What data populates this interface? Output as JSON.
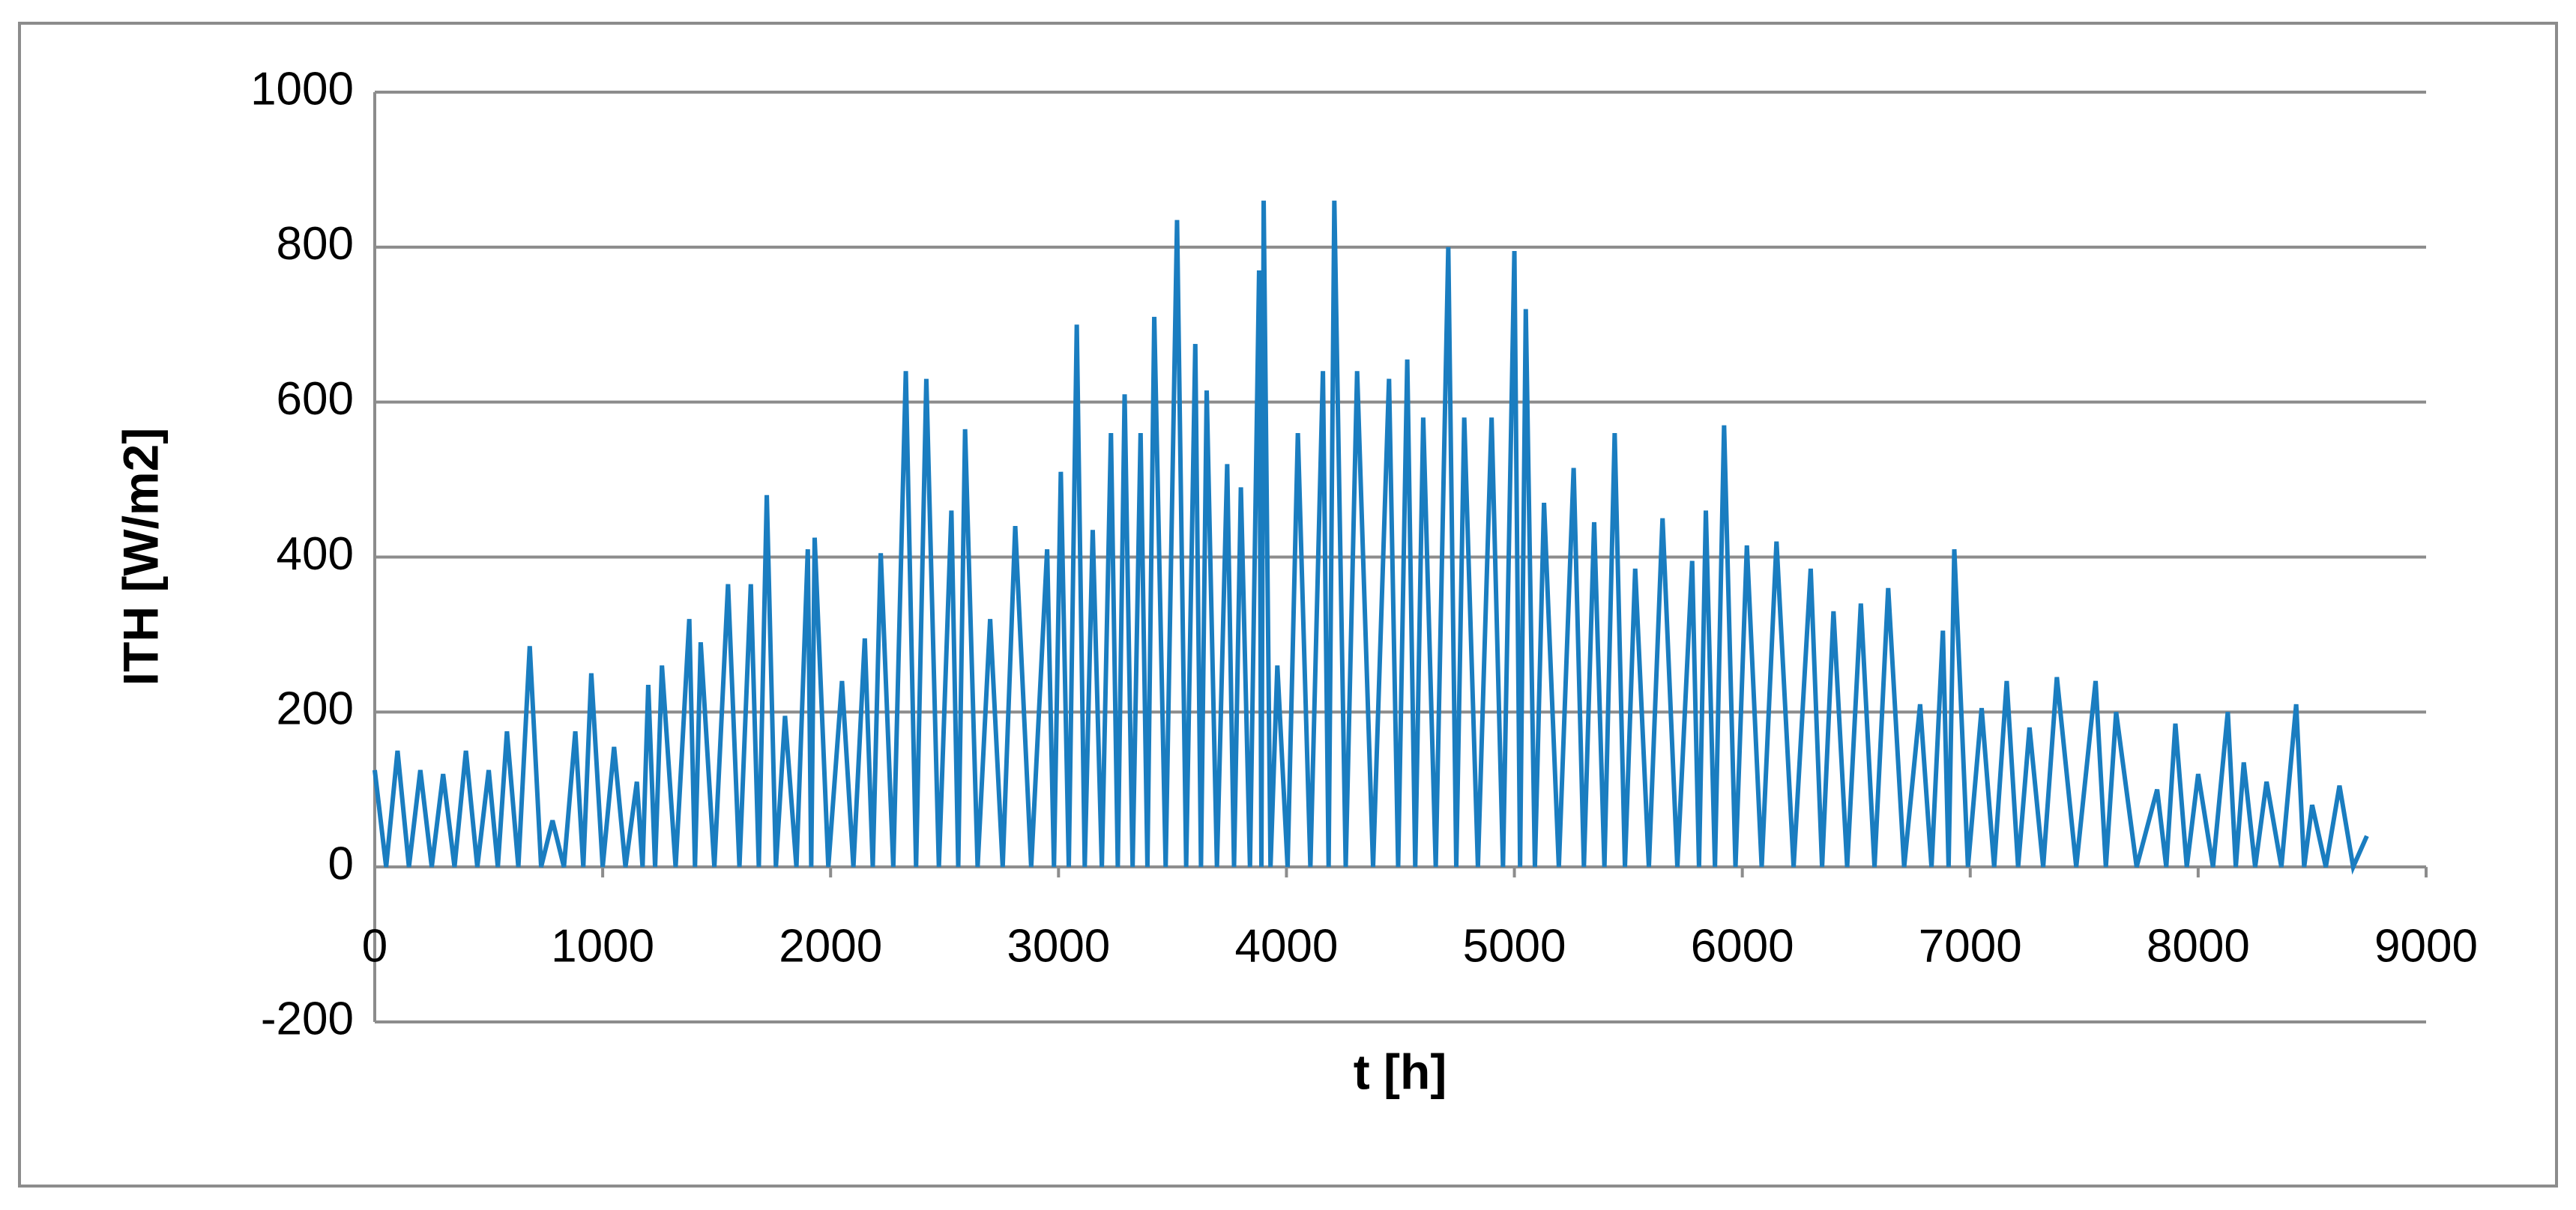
{
  "chart_data": {
    "type": "line",
    "x_label": "t [h]",
    "y_label": "ITH [W/m2]",
    "xlim": [
      0,
      9000
    ],
    "xticks": [
      0,
      1000,
      2000,
      3000,
      4000,
      5000,
      6000,
      7000,
      8000,
      9000
    ],
    "ylim": [
      -200,
      1000
    ],
    "yticks": [
      -200,
      0,
      200,
      400,
      600,
      800,
      1000
    ],
    "grid": true,
    "x": [
      0,
      50,
      100,
      150,
      200,
      250,
      300,
      350,
      400,
      450,
      500,
      540,
      580,
      630,
      680,
      730,
      780,
      830,
      880,
      915,
      950,
      1000,
      1050,
      1100,
      1150,
      1175,
      1200,
      1230,
      1260,
      1320,
      1380,
      1405,
      1430,
      1490,
      1550,
      1600,
      1650,
      1685,
      1720,
      1760,
      1800,
      1850,
      1900,
      1915,
      1930,
      1990,
      2050,
      2100,
      2150,
      2185,
      2220,
      2275,
      2330,
      2375,
      2420,
      2475,
      2530,
      2560,
      2590,
      2645,
      2700,
      2755,
      2810,
      2880,
      2950,
      2980,
      3010,
      3045,
      3080,
      3115,
      3150,
      3190,
      3230,
      3260,
      3290,
      3325,
      3360,
      3390,
      3420,
      3470,
      3520,
      3560,
      3600,
      3625,
      3650,
      3695,
      3740,
      3770,
      3800,
      3840,
      3880,
      3890,
      3900,
      3930,
      3960,
      4005,
      4050,
      4105,
      4160,
      4185,
      4210,
      4260,
      4310,
      4380,
      4450,
      4490,
      4530,
      4565,
      4600,
      4655,
      4710,
      4745,
      4780,
      4840,
      4900,
      4950,
      5000,
      5025,
      5050,
      5090,
      5130,
      5195,
      5260,
      5305,
      5350,
      5395,
      5440,
      5485,
      5530,
      5590,
      5650,
      5715,
      5780,
      5810,
      5840,
      5880,
      5920,
      5970,
      6020,
      6085,
      6150,
      6225,
      6300,
      6350,
      6400,
      6460,
      6520,
      6580,
      6640,
      6710,
      6780,
      6830,
      6880,
      6905,
      6930,
      6990,
      7050,
      7105,
      7160,
      7210,
      7260,
      7320,
      7380,
      7465,
      7550,
      7595,
      7640,
      7730,
      7820,
      7860,
      7900,
      7950,
      8000,
      8065,
      8130,
      8165,
      8200,
      8250,
      8300,
      8365,
      8430,
      8465,
      8500,
      8560,
      8620,
      8680,
      8740
    ],
    "series": [
      {
        "color": "#1a7dc0",
        "values": [
          125,
          0,
          150,
          0,
          125,
          0,
          120,
          0,
          150,
          0,
          125,
          0,
          175,
          0,
          285,
          0,
          60,
          0,
          175,
          0,
          250,
          0,
          155,
          0,
          110,
          0,
          235,
          0,
          260,
          0,
          320,
          0,
          290,
          0,
          365,
          0,
          365,
          0,
          480,
          0,
          195,
          0,
          410,
          0,
          425,
          0,
          240,
          0,
          295,
          0,
          405,
          0,
          640,
          0,
          630,
          0,
          460,
          0,
          565,
          0,
          320,
          0,
          440,
          0,
          410,
          0,
          510,
          0,
          700,
          0,
          435,
          0,
          560,
          0,
          610,
          0,
          560,
          0,
          710,
          0,
          835,
          0,
          675,
          0,
          615,
          0,
          520,
          0,
          490,
          0,
          770,
          0,
          860,
          0,
          260,
          0,
          560,
          0,
          640,
          0,
          860,
          0,
          640,
          0,
          630,
          0,
          655,
          0,
          580,
          0,
          800,
          0,
          580,
          0,
          580,
          0,
          795,
          0,
          720,
          0,
          470,
          0,
          515,
          0,
          445,
          0,
          560,
          0,
          385,
          0,
          450,
          0,
          395,
          0,
          460,
          0,
          570,
          0,
          415,
          0,
          420,
          0,
          385,
          0,
          330,
          0,
          340,
          0,
          360,
          0,
          210,
          0,
          305,
          0,
          410,
          0,
          205,
          0,
          240,
          0,
          180,
          0,
          245,
          0,
          240,
          0,
          200,
          0,
          100,
          0,
          185,
          0,
          120,
          0,
          200,
          0,
          135,
          0,
          110,
          0,
          210,
          0,
          80,
          0,
          105,
          0,
          40
        ]
      }
    ]
  }
}
